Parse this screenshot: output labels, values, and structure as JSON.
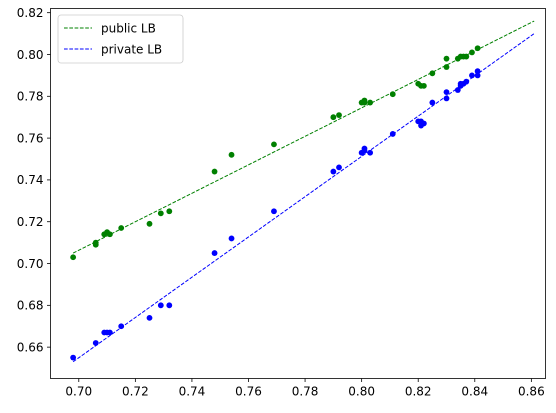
{
  "chart_data": {
    "type": "scatter",
    "title": "",
    "xlabel": "",
    "ylabel": "",
    "xlim": [
      0.69,
      0.865
    ],
    "ylim": [
      0.645,
      0.822
    ],
    "xticks": [
      "0.70",
      "0.72",
      "0.74",
      "0.76",
      "0.78",
      "0.80",
      "0.82",
      "0.84",
      "0.86"
    ],
    "yticks": [
      "0.66",
      "0.68",
      "0.70",
      "0.72",
      "0.74",
      "0.76",
      "0.78",
      "0.80",
      "0.82"
    ],
    "grid": false,
    "legend_position": "top-left",
    "legend": [
      {
        "label": "public LB",
        "color": "#008000",
        "style": "dashed"
      },
      {
        "label": "private LB",
        "color": "#0000ff",
        "style": "dashed"
      }
    ],
    "series": [
      {
        "color": "#008000",
        "x": [
          0.698,
          0.706,
          0.706,
          0.709,
          0.71,
          0.711,
          0.715,
          0.725,
          0.729,
          0.732,
          0.748,
          0.754,
          0.769,
          0.79,
          0.792,
          0.8,
          0.801,
          0.801,
          0.803,
          0.811,
          0.82,
          0.821,
          0.822,
          0.825,
          0.83,
          0.83,
          0.834,
          0.835,
          0.836,
          0.837,
          0.839,
          0.841
        ],
        "y": [
          0.703,
          0.709,
          0.71,
          0.714,
          0.715,
          0.714,
          0.717,
          0.719,
          0.724,
          0.725,
          0.744,
          0.752,
          0.757,
          0.77,
          0.771,
          0.777,
          0.778,
          0.777,
          0.777,
          0.781,
          0.786,
          0.785,
          0.785,
          0.791,
          0.794,
          0.798,
          0.798,
          0.799,
          0.799,
          0.799,
          0.801,
          0.803
        ]
      },
      {
        "color": "#0000ff",
        "x": [
          0.698,
          0.706,
          0.709,
          0.71,
          0.711,
          0.715,
          0.725,
          0.729,
          0.732,
          0.748,
          0.754,
          0.769,
          0.79,
          0.792,
          0.8,
          0.801,
          0.801,
          0.803,
          0.811,
          0.82,
          0.821,
          0.821,
          0.822,
          0.825,
          0.83,
          0.83,
          0.834,
          0.835,
          0.835,
          0.836,
          0.837,
          0.839,
          0.841,
          0.841
        ],
        "y": [
          0.655,
          0.662,
          0.667,
          0.667,
          0.667,
          0.67,
          0.674,
          0.68,
          0.68,
          0.705,
          0.712,
          0.725,
          0.744,
          0.746,
          0.753,
          0.755,
          0.754,
          0.753,
          0.762,
          0.768,
          0.766,
          0.768,
          0.767,
          0.777,
          0.779,
          0.782,
          0.783,
          0.785,
          0.786,
          0.786,
          0.787,
          0.79,
          0.79,
          0.792
        ]
      }
    ],
    "lines": [
      {
        "label": "public LB",
        "color": "#008000",
        "x": [
          0.698,
          0.861
        ],
        "y": [
          0.705,
          0.816
        ]
      },
      {
        "label": "private LB",
        "color": "#0000ff",
        "x": [
          0.698,
          0.861
        ],
        "y": [
          0.653,
          0.81
        ]
      }
    ]
  }
}
